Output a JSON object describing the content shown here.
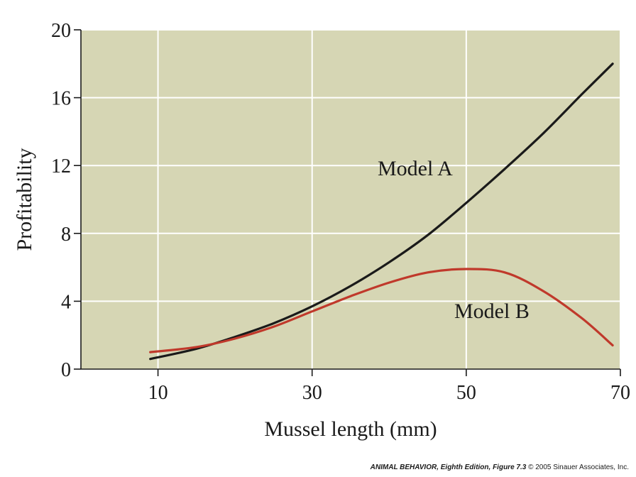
{
  "chart_data": {
    "type": "line",
    "xlabel": "Mussel length (mm)",
    "ylabel": "Profitability",
    "xlim": [
      0,
      70
    ],
    "ylim": [
      0,
      20
    ],
    "x_ticks": [
      10,
      30,
      50,
      70
    ],
    "y_ticks": [
      0,
      4,
      8,
      12,
      16,
      20
    ],
    "grid": true,
    "series": [
      {
        "name": "Model A",
        "color": "#1a1a1a",
        "x": [
          9,
          15,
          20,
          25,
          30,
          35,
          40,
          45,
          50,
          55,
          60,
          65,
          69
        ],
        "y": [
          0.6,
          1.2,
          1.9,
          2.7,
          3.7,
          4.9,
          6.3,
          7.9,
          9.8,
          11.8,
          13.9,
          16.2,
          18.0
        ]
      },
      {
        "name": "Model B",
        "color": "#c0392b",
        "x": [
          9,
          15,
          20,
          25,
          30,
          35,
          40,
          45,
          50,
          55,
          60,
          65,
          69
        ],
        "y": [
          1.0,
          1.3,
          1.8,
          2.5,
          3.4,
          4.3,
          5.1,
          5.7,
          5.9,
          5.7,
          4.6,
          3.0,
          1.4
        ]
      }
    ],
    "background_color": "#d6d6b4",
    "grid_color": "#ffffff"
  },
  "credit": {
    "book": "ANIMAL BEHAVIOR, Eighth Edition",
    "figure": ", Figure 7.3",
    "copyright": "  © 2005 Sinauer Associates, Inc."
  }
}
